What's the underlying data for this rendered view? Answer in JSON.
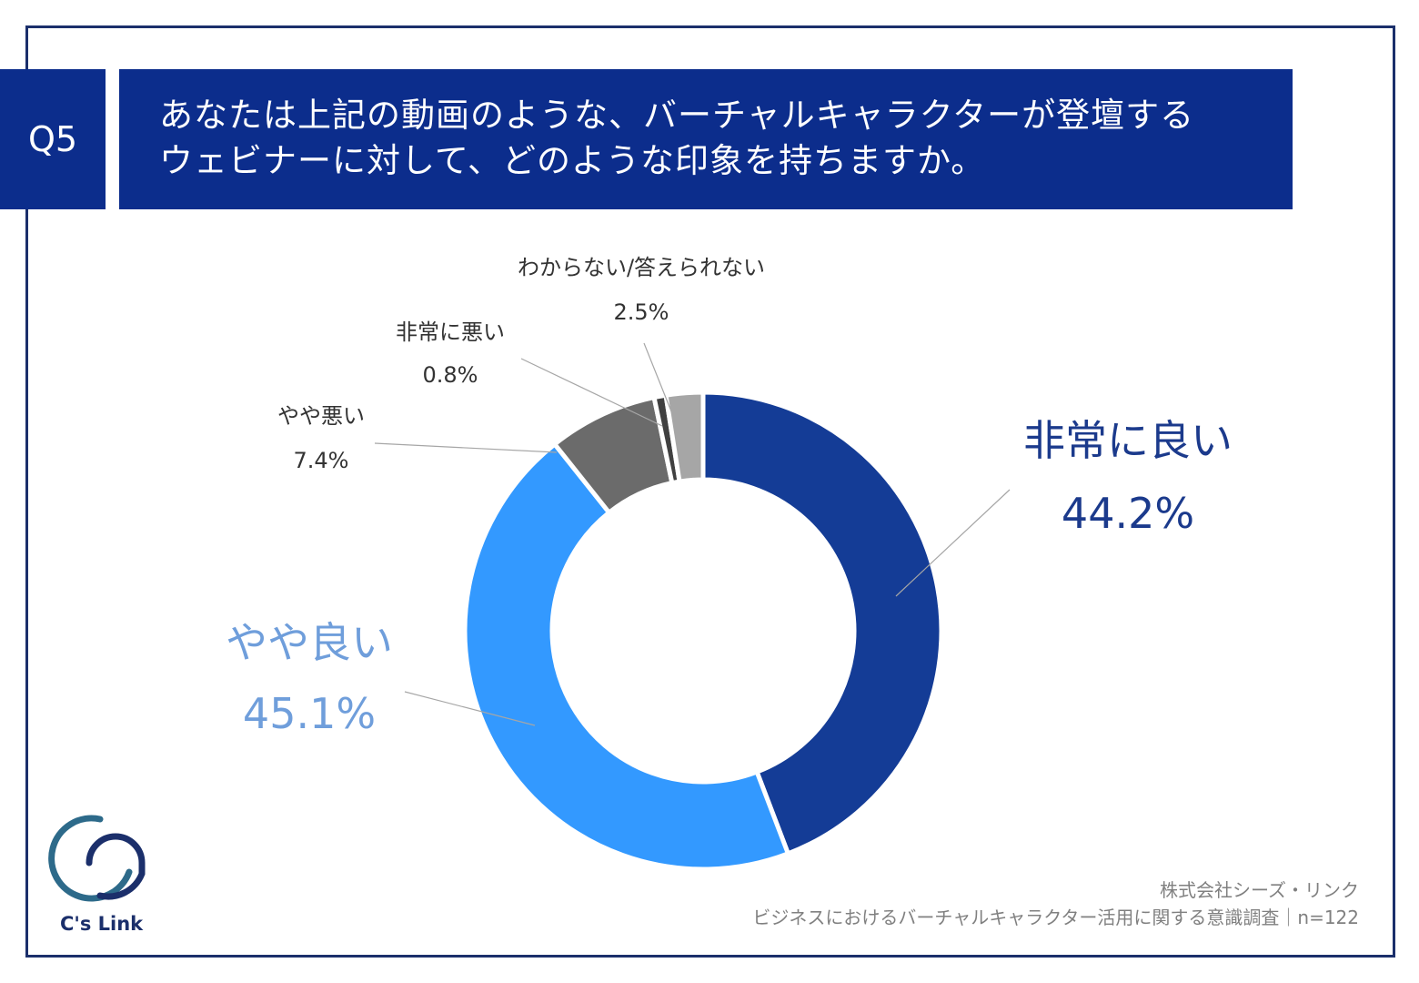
{
  "question": {
    "badge": "Q5",
    "line1": "あなたは上記の動画のような、バーチャルキャラクターが登壇する",
    "line2": "ウェビナーに対して、どのような印象を持ちますか。"
  },
  "chart_data": {
    "type": "pie",
    "donut": true,
    "categories": [
      "非常に良い",
      "やや良い",
      "やや悪い",
      "非常に悪い",
      "わからない/答えられない"
    ],
    "values": [
      44.2,
      45.1,
      7.4,
      0.8,
      2.5
    ],
    "value_labels": [
      "44.2%",
      "45.1%",
      "7.4%",
      "0.8%",
      "2.5%"
    ],
    "colors": [
      "#143c96",
      "#3399ff",
      "#6b6b6b",
      "#404040",
      "#a6a6a6"
    ],
    "label_colors": [
      "#1b3a8c",
      "#6f9edb",
      "#333333",
      "#333333",
      "#333333"
    ],
    "unit": "%"
  },
  "footer": {
    "company": "株式会社シーズ・リンク",
    "survey": "ビジネスにおけるバーチャルキャラクター活用に関する意識調査｜n=122"
  },
  "logo": {
    "text": "C's Link",
    "color": "#1b2f6b",
    "accent": "#2d6a8a"
  }
}
